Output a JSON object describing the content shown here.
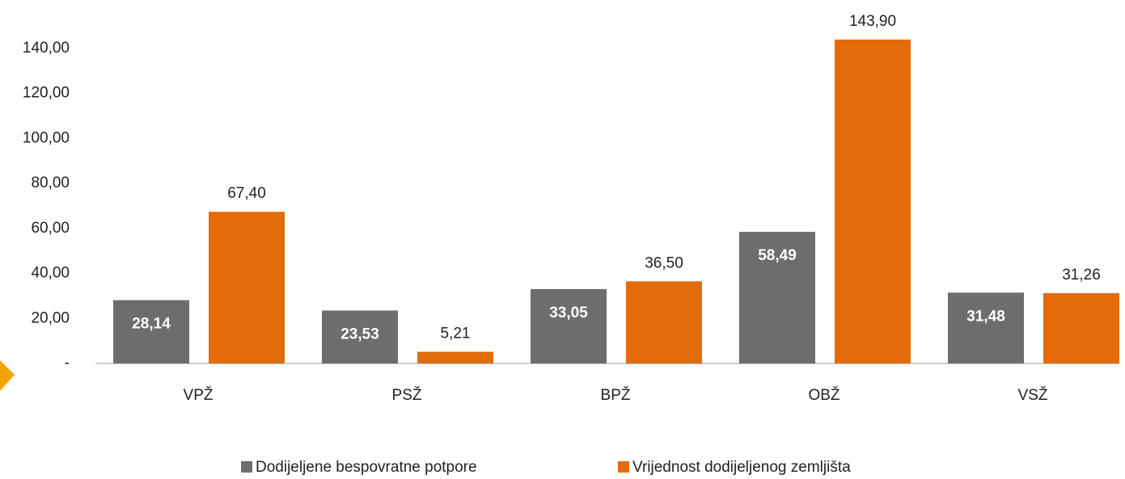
{
  "chart_data": {
    "type": "bar",
    "categories": [
      "VPŽ",
      "PSŽ",
      "BPŽ",
      "OBŽ",
      "VSŽ"
    ],
    "series": [
      {
        "name": "Dodijeljene bespovratne potpore",
        "color": "#6d6d6d",
        "values": [
          28.14,
          23.53,
          33.05,
          58.49,
          31.48
        ],
        "value_labels": [
          "28,14",
          "23,53",
          "33,05",
          "58,49",
          "31,48"
        ]
      },
      {
        "name": "Vrijednost dodijeljenog zemljišta",
        "color": "#e36c0a",
        "values": [
          67.4,
          5.21,
          36.5,
          143.9,
          31.26
        ],
        "value_labels": [
          "67,40",
          "5,21",
          "36,50",
          "143,90",
          "31,26"
        ]
      }
    ],
    "ylim": [
      0,
      150
    ],
    "yticks": [
      {
        "value": 0,
        "label": "-"
      },
      {
        "value": 20,
        "label": "20,00"
      },
      {
        "value": 40,
        "label": "40,00"
      },
      {
        "value": 60,
        "label": "60,00"
      },
      {
        "value": 80,
        "label": "80,00"
      },
      {
        "value": 100,
        "label": "100,00"
      },
      {
        "value": 120,
        "label": "120,00"
      },
      {
        "value": 140,
        "label": "140,00"
      }
    ],
    "legend": "bottom"
  }
}
